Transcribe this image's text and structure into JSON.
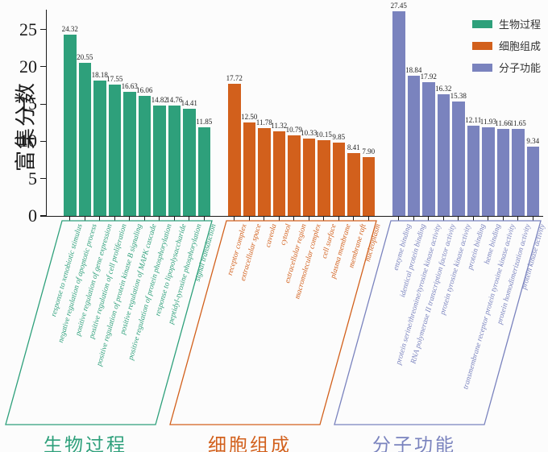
{
  "chart_data": {
    "type": "bar",
    "title": "",
    "ylabel": "富集分数",
    "yticks": [
      0,
      5,
      10,
      15,
      20,
      25
    ],
    "ylim": [
      0,
      27.5
    ],
    "legend_position": "upper right",
    "grid": false,
    "groups": [
      {
        "name": "生物过程",
        "color": "#2EA07B",
        "categories": [
          "response to xenobiotic stimulus",
          "negative regulation of apoptotic process",
          "positive regulation of gene expression",
          "positive regulation of cell proliferation",
          "positive regulation of protein kinase B signaling",
          "positive regulation of MAPK cascade",
          "positive regulation of protein phosphorylation",
          "response to lipopolysaccharide",
          "peptidyl-tyrosine phosphorylation",
          "signal transduction"
        ],
        "values": [
          24.32,
          20.55,
          18.18,
          17.55,
          16.63,
          16.06,
          14.82,
          14.76,
          14.41,
          11.85
        ]
      },
      {
        "name": "细胞组成",
        "color": "#D2601C",
        "categories": [
          "receptor complex",
          "extracellular space",
          "caveola",
          "cytosol",
          "extracellular region",
          "macromolecular complex",
          "cell surface",
          "plasma membrane",
          "membrane raft",
          "nucleoplasm"
        ],
        "values": [
          17.72,
          12.5,
          11.78,
          11.32,
          10.79,
          10.33,
          10.15,
          9.85,
          8.41,
          7.9
        ]
      },
      {
        "name": "分子功能",
        "color": "#7A83BE",
        "categories": [
          "enzyme binding",
          "identical protein binding",
          "protein serine/threonine/tyrosine kinase activity",
          "RNA polymerase II transcription factor activity",
          "protein tyrosine kinase activity",
          "protein binding",
          "heme binding",
          "transmembrane receptor protein tyrosine kinase activity",
          "protein homodimerization activity",
          "protein kinase activity"
        ],
        "values": [
          27.45,
          18.84,
          17.92,
          16.32,
          15.38,
          12.11,
          11.93,
          11.66,
          11.65,
          9.34
        ]
      }
    ]
  }
}
